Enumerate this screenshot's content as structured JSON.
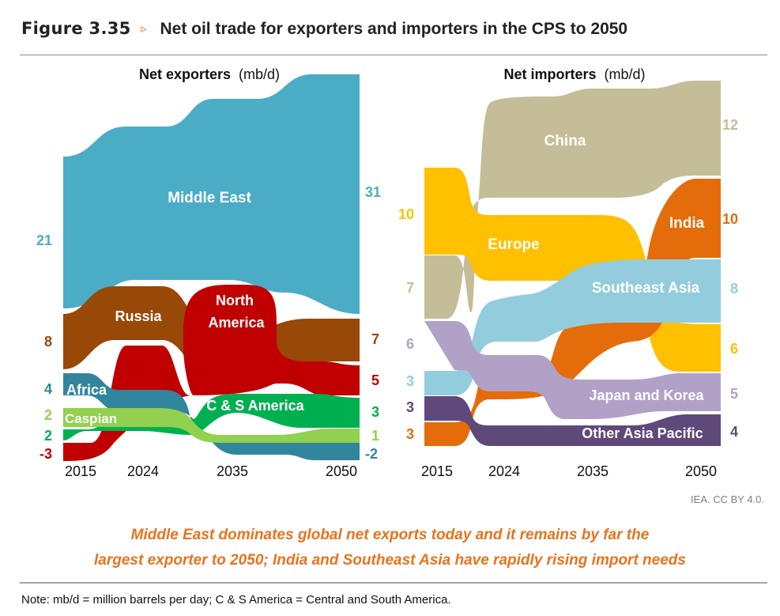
{
  "figure": {
    "number": "Figure 3.35",
    "arrow": "▹",
    "title": "Net oil trade for exporters and importers in the CPS to 2050",
    "credit": "IEA. CC BY 4.0.",
    "subtitle_line1": "Middle East dominates global net exports today and it remains by far the",
    "subtitle_line2": "largest exporter to 2050; India and Southeast Asia have rapidly rising import needs",
    "note": "Note: mb/d = million barrels per day; C & S America = Central and South America."
  },
  "colors": {
    "middle_east": "#4bacc6",
    "russia": "#984807",
    "north_america": "#c00000",
    "africa": "#31859c",
    "c_s_america": "#00b050",
    "caspian": "#92d050",
    "china": "#c4bd97",
    "europe": "#ffc000",
    "india": "#e46c0a",
    "southeast_asia": "#93cddd",
    "japan_korea": "#b2a1c7",
    "other_asia_pacific": "#5f497a",
    "accent": "#e8731c"
  },
  "chart_data": [
    {
      "type": "area",
      "title_bold": "Net exporters",
      "title_unit": "(mb/d)",
      "x": [
        "2015",
        "2024",
        "2035",
        "2050"
      ],
      "series": [
        {
          "name": "Middle East",
          "start": 21,
          "end": 31,
          "start_label": "21",
          "end_label": "31"
        },
        {
          "name": "Russia",
          "start": 8,
          "end": 7,
          "start_label": "8",
          "end_label": "7"
        },
        {
          "name": "North America",
          "start": -3,
          "end": 5,
          "start_label": "-3",
          "end_label": "5"
        },
        {
          "name": "Africa",
          "start": 4,
          "end": -2,
          "start_label": "4",
          "end_label": "-2"
        },
        {
          "name": "C & S America",
          "start": 2,
          "end": 3,
          "start_label": "2",
          "end_label": "3"
        },
        {
          "name": "Caspian",
          "start": 2,
          "end": 1,
          "start_label": "2",
          "end_label": "1"
        }
      ],
      "stream_labels": {
        "middle_east": "Middle East",
        "russia": "Russia",
        "north_america_1": "North",
        "north_america_2": "America",
        "africa": "Africa",
        "caspian": "Caspian",
        "c_s_america": "C & S America"
      }
    },
    {
      "type": "area",
      "title_bold": "Net importers",
      "title_unit": "(mb/d)",
      "x": [
        "2015",
        "2024",
        "2035",
        "2050"
      ],
      "series": [
        {
          "name": "China",
          "start": 7,
          "end": 12,
          "start_label": "7",
          "end_label": "12"
        },
        {
          "name": "Europe",
          "start": 10,
          "end": 6,
          "start_label": "10",
          "end_label": "6"
        },
        {
          "name": "India",
          "start": 3,
          "end": 10,
          "start_label": "3",
          "end_label": "10"
        },
        {
          "name": "Southeast Asia",
          "start": 3,
          "end": 8,
          "start_label": "3",
          "end_label": "8"
        },
        {
          "name": "Japan and Korea",
          "start": 6,
          "end": 5,
          "start_label": "6",
          "end_label": "5"
        },
        {
          "name": "Other Asia Pacific",
          "start": 3,
          "end": 4,
          "start_label": "3",
          "end_label": "4"
        }
      ],
      "stream_labels": {
        "china": "China",
        "europe": "Europe",
        "india": "India",
        "southeast_asia": "Southeast Asia",
        "japan_korea": "Japan and Korea",
        "other_asia_pacific": "Other Asia Pacific"
      }
    }
  ]
}
